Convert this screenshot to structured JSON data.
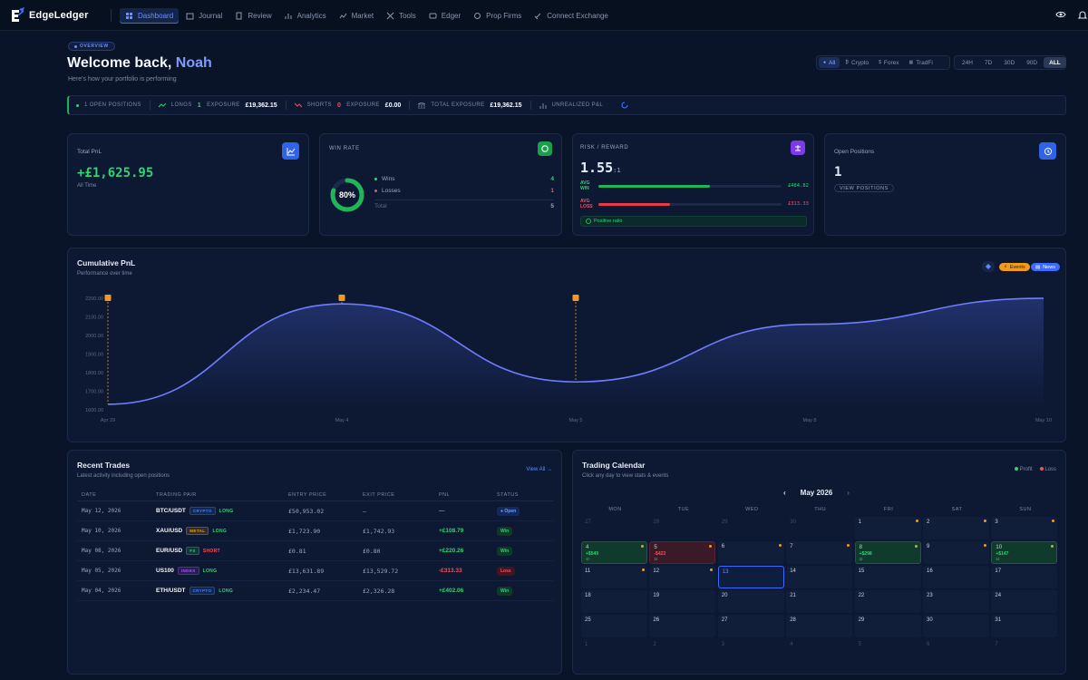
{
  "app": {
    "name": "EdgeLedger"
  },
  "nav": [
    {
      "label": "Dashboard",
      "icon": "dashboard-icon",
      "active": true
    },
    {
      "label": "Journal",
      "icon": "journal-icon"
    },
    {
      "label": "Review",
      "icon": "review-icon"
    },
    {
      "label": "Analytics",
      "icon": "analytics-icon"
    },
    {
      "label": "Market",
      "icon": "market-icon"
    },
    {
      "label": "Tools",
      "icon": "tools-icon"
    },
    {
      "label": "Edger",
      "icon": "edger-icon"
    },
    {
      "label": "Prop Firms",
      "icon": "prop-firms-icon"
    },
    {
      "label": "Connect Exchange",
      "icon": "connect-icon"
    }
  ],
  "header": {
    "overview_label": "OVERVIEW",
    "welcome": "Welcome back,",
    "name": "Noah",
    "subtitle": "Here's how your portfolio is performing"
  },
  "asset_filters": [
    {
      "label": "All",
      "active": true
    },
    {
      "label": "Crypto"
    },
    {
      "label": "Forex"
    },
    {
      "label": "TradFi"
    }
  ],
  "time_filters": [
    {
      "label": "24H"
    },
    {
      "label": "7D"
    },
    {
      "label": "30D"
    },
    {
      "label": "90D"
    },
    {
      "label": "ALL",
      "active": true
    }
  ],
  "status_bar": {
    "open_positions": "1 OPEN POSITIONS",
    "longs_label": "LONGS",
    "longs_count": "1",
    "longs_exposure_label": "EXPOSURE",
    "longs_exposure": "£19,362.15",
    "shorts_label": "SHORTS",
    "shorts_count": "0",
    "shorts_exposure_label": "EXPOSURE",
    "shorts_exposure": "£0.00",
    "total_exposure_label": "TOTAL EXPOSURE",
    "total_exposure": "£19,362.15",
    "unrealized_label": "UNREALIZED P&L"
  },
  "cards": {
    "total_pnl": {
      "title": "Total PnL",
      "value": "+£1,625.95",
      "period": "All Time"
    },
    "win_rate": {
      "title": "WIN RATE",
      "percent": "80%",
      "fraction": 0.8,
      "wins_label": "Wins",
      "wins": "4",
      "losses_label": "Losses",
      "losses": "1",
      "total_label": "Total",
      "total": "5"
    },
    "risk_reward": {
      "title": "RISK / REWARD",
      "ratio": "1.55",
      "ratio_suffix": ":1",
      "avg_win_label": "AVG WIN",
      "avg_win": "£484.82",
      "avg_win_fraction": 0.61,
      "avg_loss_label": "AVG LOSS",
      "avg_loss": "£313.33",
      "avg_loss_fraction": 0.39,
      "badge": "Positive ratio"
    },
    "open_positions": {
      "title": "Open Positions",
      "count": "1",
      "button": "VIEW POSITIONS"
    }
  },
  "chart_data": {
    "type": "line",
    "title": "Cumulative PnL",
    "subtitle": "Performance over time",
    "x_ticks": [
      "Apr 29",
      "May 4",
      "May 5",
      "May 8",
      "May 10"
    ],
    "y_ticks": [
      "2200.00",
      "2100.00",
      "2000.00",
      "1900.00",
      "1800.00",
      "1700.00",
      "1600.00"
    ],
    "ylim": [
      1600,
      2200
    ],
    "points": [
      {
        "x": 0,
        "y": 1630
      },
      {
        "x": 1,
        "y": 2170
      },
      {
        "x": 2,
        "y": 1750
      },
      {
        "x": 3,
        "y": 2060
      },
      {
        "x": 4,
        "y": 2200
      }
    ],
    "event_markers": [
      0,
      1,
      2
    ],
    "line_color": "#6f7dff",
    "legend": {
      "events": "Events",
      "news": "News"
    }
  },
  "recent_trades": {
    "title": "Recent Trades",
    "subtitle": "Latest activity including open positions",
    "view_all": "View All →",
    "headers": [
      "DATE",
      "TRADING PAIR",
      "ENTRY PRICE",
      "EXIT PRICE",
      "PNL",
      "STATUS"
    ],
    "rows": [
      {
        "date": "May 12, 2026",
        "pair": "BTC/USDT",
        "tag": "CRYPTO",
        "tag_color": "#3b82f6",
        "dir": "LONG",
        "entry": "£50,953.02",
        "exit": "—",
        "pnl": "—",
        "pnl_color": "#2ed573",
        "status": "● Open",
        "status_kind": "open"
      },
      {
        "date": "May 10, 2026",
        "pair": "XAU/USD",
        "tag": "METAL",
        "tag_color": "#f29a1f",
        "dir": "LONG",
        "entry": "£1,723.90",
        "exit": "£1,742.93",
        "pnl": "+£108.79",
        "pnl_color": "#2ed573",
        "status": "Win",
        "status_kind": "win"
      },
      {
        "date": "May 08, 2026",
        "pair": "EUR/USD",
        "tag": "FX",
        "tag_color": "#2ed573",
        "dir": "SHORT",
        "entry": "£0.81",
        "exit": "£0.80",
        "pnl": "+£220.26",
        "pnl_color": "#2ed573",
        "status": "Win",
        "status_kind": "win"
      },
      {
        "date": "May 05, 2026",
        "pair": "US100",
        "tag": "INDEX",
        "tag_color": "#a855f7",
        "dir": "LONG",
        "entry": "£13,631.89",
        "exit": "£13,529.72",
        "pnl": "-£313.33",
        "pnl_color": "#ff4d5e",
        "status": "Loss",
        "status_kind": "loss"
      },
      {
        "date": "May 04, 2026",
        "pair": "ETH/USDT",
        "tag": "CRYPTO",
        "tag_color": "#3b82f6",
        "dir": "LONG",
        "entry": "£2,234.47",
        "exit": "£2,326.28",
        "pnl": "+£402.06",
        "pnl_color": "#2ed573",
        "status": "Win",
        "status_kind": "win"
      }
    ]
  },
  "calendar": {
    "title": "Trading Calendar",
    "subtitle": "Click any day to view stats & events",
    "legend_profit": "Profit",
    "legend_loss": "Loss",
    "month": "May 2026",
    "prev": "‹",
    "next": "›",
    "weekdays": [
      "MON",
      "TUE",
      "WED",
      "THU",
      "FRI",
      "SAT",
      "SUN"
    ],
    "days": [
      {
        "d": "27",
        "dim": true
      },
      {
        "d": "28",
        "dim": true
      },
      {
        "d": "29",
        "dim": true
      },
      {
        "d": "30",
        "dim": true
      },
      {
        "d": "1",
        "dot": true
      },
      {
        "d": "2",
        "dot": true
      },
      {
        "d": "3",
        "dot": true
      },
      {
        "d": "4",
        "kind": "profit",
        "pnl": "+$549",
        "cnt": "1t",
        "dot": true
      },
      {
        "d": "5",
        "kind": "loss",
        "pnl": "-$423",
        "cnt": "1t",
        "dot": true
      },
      {
        "d": "6",
        "dot": true
      },
      {
        "d": "7",
        "dot": true
      },
      {
        "d": "8",
        "kind": "profit",
        "pnl": "+$298",
        "cnt": "1t",
        "dot": true
      },
      {
        "d": "9",
        "dot": true
      },
      {
        "d": "10",
        "kind": "profit",
        "pnl": "+$147",
        "cnt": "1t",
        "dot": true
      },
      {
        "d": "11",
        "dot": true
      },
      {
        "d": "12",
        "dot": true
      },
      {
        "d": "13",
        "kind": "today"
      },
      {
        "d": "14"
      },
      {
        "d": "15"
      },
      {
        "d": "16"
      },
      {
        "d": "17"
      },
      {
        "d": "18"
      },
      {
        "d": "19"
      },
      {
        "d": "20"
      },
      {
        "d": "21"
      },
      {
        "d": "22"
      },
      {
        "d": "23"
      },
      {
        "d": "24"
      },
      {
        "d": "25"
      },
      {
        "d": "26"
      },
      {
        "d": "27"
      },
      {
        "d": "28"
      },
      {
        "d": "29"
      },
      {
        "d": "30"
      },
      {
        "d": "31"
      },
      {
        "d": "1",
        "dim": true
      },
      {
        "d": "2",
        "dim": true
      },
      {
        "d": "3",
        "dim": true
      },
      {
        "d": "4",
        "dim": true
      },
      {
        "d": "5",
        "dim": true
      },
      {
        "d": "6",
        "dim": true
      },
      {
        "d": "7",
        "dim": true
      }
    ]
  }
}
